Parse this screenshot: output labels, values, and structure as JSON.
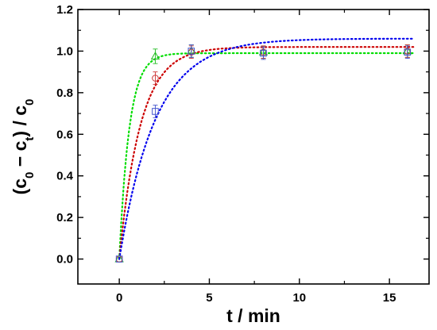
{
  "chart_data": {
    "type": "scatter",
    "xlabel": "t / min",
    "ylabel_parts": {
      "open": "(c",
      "sub0": "0",
      "minus": " − c",
      "subt": "t",
      "close": ") / c",
      "sub0b": "0"
    },
    "xlim": [
      -2.3,
      17.2
    ],
    "ylim": [
      -0.12,
      1.2
    ],
    "xticks": [
      0,
      5,
      10,
      15
    ],
    "yticks": [
      0.0,
      0.2,
      0.4,
      0.6,
      0.8,
      1.0,
      1.2
    ],
    "tick_labels_x": [
      "0",
      "5",
      "10",
      "15"
    ],
    "tick_labels_y": [
      "0.0",
      "0.2",
      "0.4",
      "0.6",
      "0.8",
      "1.0",
      "1.2"
    ],
    "series": [
      {
        "marker": "triangle",
        "color": "#22bb22",
        "x": [
          0,
          2,
          4,
          8,
          16
        ],
        "y": [
          0.0,
          0.975,
          1.0,
          0.995,
          1.0
        ],
        "err": [
          0.0,
          0.035,
          0.03,
          0.03,
          0.03
        ]
      },
      {
        "marker": "circle",
        "color": "#cc3333",
        "x": [
          0,
          2,
          4,
          8,
          16
        ],
        "y": [
          0.0,
          0.87,
          0.995,
          0.995,
          1.0
        ],
        "err": [
          0.0,
          0.03,
          0.03,
          0.03,
          0.03
        ]
      },
      {
        "marker": "square",
        "color": "#4455cc",
        "x": [
          0,
          2,
          4,
          8,
          16
        ],
        "y": [
          0.0,
          0.71,
          1.0,
          0.99,
          0.995
        ],
        "err": [
          0.0,
          0.03,
          0.03,
          0.03,
          0.03
        ]
      }
    ],
    "fits": [
      {
        "color": "#00dd00",
        "dash": "dotted",
        "plateau": 0.99,
        "rate": 1.8
      },
      {
        "color": "#cc0000",
        "dash": "dotted",
        "plateau": 1.02,
        "rate": 0.85
      },
      {
        "color": "#0000ee",
        "dash": "dotted",
        "plateau": 1.06,
        "rate": 0.5
      }
    ],
    "grid": false,
    "legend": "none"
  }
}
